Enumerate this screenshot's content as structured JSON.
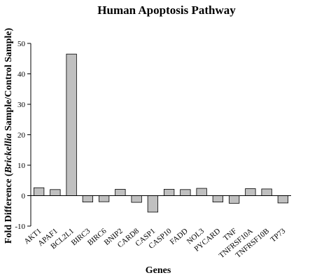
{
  "chart_data": {
    "type": "bar",
    "title": "Human Apoptosis Pathway",
    "xlabel": "Genes",
    "ylabel_parts": [
      "Fold Difference (",
      "Brickellia",
      " Sample/Control Sample)"
    ],
    "ylim": [
      -10,
      50
    ],
    "yticks": [
      -10,
      0,
      10,
      20,
      30,
      40,
      50
    ],
    "grid": false,
    "bar_color": "#c0c0c0",
    "categories": [
      "AKT1",
      "APAF1",
      "BCL2L1",
      "BIRC3",
      "BIRC6",
      "BNIP2",
      "CARD8",
      "CASP1",
      "CASP10",
      "FADD",
      "NOL3",
      "PYCARD",
      "TNF",
      "TNFRSF10A",
      "TNFRSF10B",
      "TP73"
    ],
    "values": [
      2.6,
      2.0,
      46.5,
      -2.1,
      -2.0,
      2.1,
      -2.2,
      -5.4,
      2.1,
      2.0,
      2.4,
      -2.1,
      -2.5,
      2.3,
      2.2,
      -2.4
    ]
  }
}
